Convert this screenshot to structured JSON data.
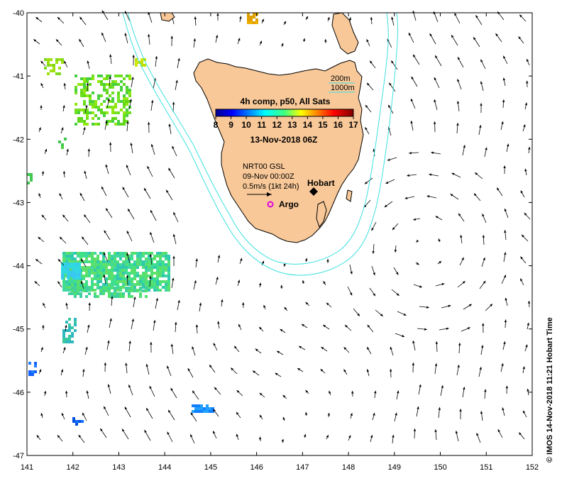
{
  "map": {
    "extent": {
      "lon": [
        141,
        152
      ],
      "lat": [
        -47,
        -40
      ]
    },
    "lon_ticks": [
      "141",
      "142",
      "143",
      "144",
      "145",
      "146",
      "147",
      "148",
      "149",
      "150",
      "151",
      "152"
    ],
    "lat_ticks": [
      "-40",
      "-41",
      "-42",
      "-43",
      "-44",
      "-45",
      "-46",
      "-47"
    ],
    "colors": {
      "land": "#f8c898",
      "land_outline": "#000000",
      "isobath": "#3ee0e0",
      "vector": "#000000",
      "argo": "#e000e0"
    }
  },
  "colorbar": {
    "title": "4h comp, p50, All Sats",
    "min": 8,
    "max": 17,
    "ticks": [
      "8",
      "9",
      "10",
      "11",
      "12",
      "13",
      "14",
      "15",
      "16",
      "17"
    ],
    "colormap": "jet"
  },
  "isobath_legend": {
    "shallow": "200m",
    "deep": "1000m"
  },
  "date_label": "13-Nov-2018 06Z",
  "current_info": {
    "line1": "NRT00 GSL",
    "line2": "09-Nov 00:00Z",
    "scale": "0.5m/s (1kt 24h)"
  },
  "places": [
    {
      "name": "Hobart",
      "lon": 147.33,
      "lat": -42.88
    },
    {
      "name": "Argo",
      "lon": 146.25,
      "lat": -43.0
    }
  ],
  "vertical_label": "© IMOS 14-Nov-2018 11:21 Hobart Time"
}
